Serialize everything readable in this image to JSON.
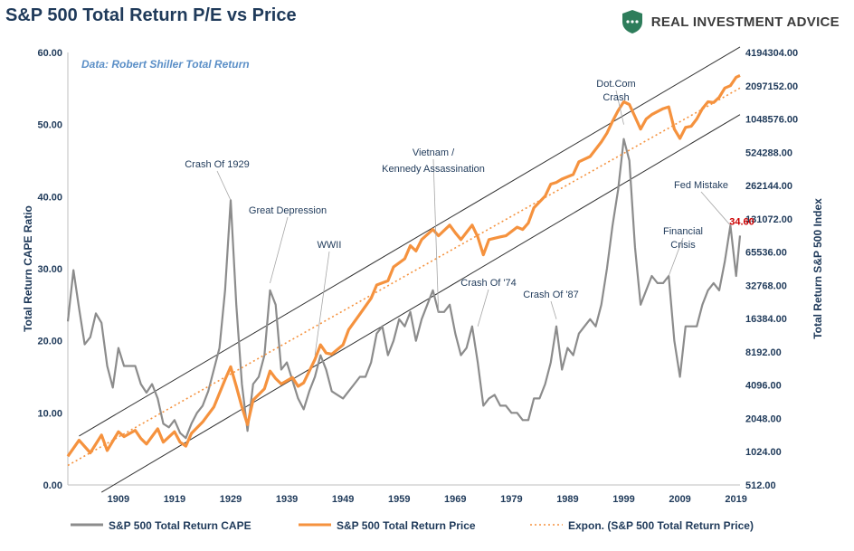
{
  "title": "S&P 500 Total Return P/E vs Price",
  "brand": {
    "name": "REAL INVESTMENT ADVICE",
    "icon": "shield-chart-icon",
    "color": "#2e7d5b"
  },
  "source_note": "Data: Robert Shiller Total Return",
  "chart_data": {
    "type": "line",
    "x_ticks": [
      "1909",
      "1919",
      "1929",
      "1939",
      "1949",
      "1959",
      "1969",
      "1979",
      "1989",
      "1999",
      "2009",
      "2019"
    ],
    "xlim": [
      1900,
      2019.7
    ],
    "y_left": {
      "label": "Total Return CAPE Ratio",
      "ticks": [
        "0.00",
        "10.00",
        "20.00",
        "30.00",
        "40.00",
        "50.00",
        "60.00"
      ],
      "range": [
        0,
        60
      ]
    },
    "y_right": {
      "label": "Total Return S&P 500 Index",
      "scale": "log2",
      "ticks": [
        "512.00",
        "1024.00",
        "2048.00",
        "4096.00",
        "8192.00",
        "16384.00",
        "32768.00",
        "65536.00",
        "131072.00",
        "262144.00",
        "524288.00",
        "1048576.00",
        "2097152.00",
        "4194304.00"
      ],
      "range": [
        512,
        4194304
      ]
    },
    "series": [
      {
        "name": "S&P 500 Total Return CAPE",
        "axis": "left",
        "color": "#8c8c8c",
        "points": [
          [
            1900,
            22.7
          ],
          [
            1901,
            29.8
          ],
          [
            1902,
            24.5
          ],
          [
            1903,
            19.5
          ],
          [
            1904,
            20.5
          ],
          [
            1905,
            23.8
          ],
          [
            1906,
            22.5
          ],
          [
            1907,
            16.5
          ],
          [
            1908,
            13.5
          ],
          [
            1909,
            19
          ],
          [
            1910,
            16.5
          ],
          [
            1911,
            16.5
          ],
          [
            1912,
            16.5
          ],
          [
            1913,
            14
          ],
          [
            1914,
            12.8
          ],
          [
            1915,
            14
          ],
          [
            1916,
            12
          ],
          [
            1917,
            8.5
          ],
          [
            1918,
            8
          ],
          [
            1919,
            9
          ],
          [
            1920,
            7.2
          ],
          [
            1921,
            6.5
          ],
          [
            1922,
            8.5
          ],
          [
            1923,
            10
          ],
          [
            1924,
            11
          ],
          [
            1925,
            13
          ],
          [
            1926,
            16
          ],
          [
            1927,
            19
          ],
          [
            1928,
            27
          ],
          [
            1929,
            39.5
          ],
          [
            1930,
            25
          ],
          [
            1931,
            14
          ],
          [
            1932,
            7.5
          ],
          [
            1933,
            14
          ],
          [
            1934,
            15
          ],
          [
            1935,
            18
          ],
          [
            1936,
            27
          ],
          [
            1937,
            25
          ],
          [
            1938,
            16
          ],
          [
            1939,
            17
          ],
          [
            1940,
            14.5
          ],
          [
            1941,
            12
          ],
          [
            1942,
            10.5
          ],
          [
            1943,
            13
          ],
          [
            1944,
            15
          ],
          [
            1945,
            18
          ],
          [
            1946,
            16
          ],
          [
            1947,
            13
          ],
          [
            1948,
            12.5
          ],
          [
            1949,
            12
          ],
          [
            1950,
            13
          ],
          [
            1951,
            14
          ],
          [
            1952,
            15
          ],
          [
            1953,
            15
          ],
          [
            1954,
            17
          ],
          [
            1955,
            21
          ],
          [
            1956,
            22
          ],
          [
            1957,
            18
          ],
          [
            1958,
            20
          ],
          [
            1959,
            23
          ],
          [
            1960,
            22
          ],
          [
            1961,
            24
          ],
          [
            1962,
            20
          ],
          [
            1963,
            23
          ],
          [
            1964,
            25
          ],
          [
            1965,
            27
          ],
          [
            1966,
            24
          ],
          [
            1967,
            24
          ],
          [
            1968,
            25
          ],
          [
            1969,
            21
          ],
          [
            1970,
            18
          ],
          [
            1971,
            19
          ],
          [
            1972,
            22
          ],
          [
            1973,
            17
          ],
          [
            1974,
            11
          ],
          [
            1975,
            12
          ],
          [
            1976,
            12.5
          ],
          [
            1977,
            11
          ],
          [
            1978,
            11
          ],
          [
            1979,
            10
          ],
          [
            1980,
            10
          ],
          [
            1981,
            9
          ],
          [
            1982,
            9
          ],
          [
            1983,
            12
          ],
          [
            1984,
            12
          ],
          [
            1985,
            14
          ],
          [
            1986,
            17
          ],
          [
            1987,
            22
          ],
          [
            1988,
            16
          ],
          [
            1989,
            19
          ],
          [
            1990,
            18
          ],
          [
            1991,
            21
          ],
          [
            1992,
            22
          ],
          [
            1993,
            23
          ],
          [
            1994,
            22
          ],
          [
            1995,
            25
          ],
          [
            1996,
            30
          ],
          [
            1997,
            36
          ],
          [
            1998,
            41
          ],
          [
            1999,
            48
          ],
          [
            2000,
            45
          ],
          [
            2001,
            33
          ],
          [
            2002,
            25
          ],
          [
            2003,
            27
          ],
          [
            2004,
            29
          ],
          [
            2005,
            28
          ],
          [
            2006,
            28
          ],
          [
            2007,
            29
          ],
          [
            2008,
            20
          ],
          [
            2009,
            15
          ],
          [
            2010,
            22
          ],
          [
            2011,
            22
          ],
          [
            2012,
            22
          ],
          [
            2013,
            25
          ],
          [
            2014,
            27
          ],
          [
            2015,
            28
          ],
          [
            2016,
            27
          ],
          [
            2017,
            31
          ],
          [
            2018,
            36
          ],
          [
            2019,
            29
          ],
          [
            2019.7,
            34.6
          ]
        ]
      },
      {
        "name": "S&P 500 Total Return Price",
        "axis": "right",
        "color": "#f5923e",
        "points": [
          [
            1900,
            930
          ],
          [
            1902,
            1300
          ],
          [
            1904,
            1000
          ],
          [
            1906,
            1450
          ],
          [
            1907,
            1050
          ],
          [
            1909,
            1550
          ],
          [
            1910,
            1400
          ],
          [
            1912,
            1600
          ],
          [
            1913,
            1350
          ],
          [
            1914,
            1200
          ],
          [
            1916,
            1650
          ],
          [
            1917,
            1250
          ],
          [
            1919,
            1550
          ],
          [
            1920,
            1250
          ],
          [
            1921,
            1150
          ],
          [
            1922,
            1500
          ],
          [
            1924,
            1900
          ],
          [
            1926,
            2600
          ],
          [
            1928,
            4600
          ],
          [
            1929,
            6000
          ],
          [
            1930,
            4000
          ],
          [
            1931,
            2600
          ],
          [
            1932,
            1800
          ],
          [
            1933,
            3000
          ],
          [
            1935,
            3800
          ],
          [
            1936,
            5500
          ],
          [
            1937,
            4700
          ],
          [
            1938,
            4200
          ],
          [
            1940,
            4800
          ],
          [
            1941,
            4000
          ],
          [
            1942,
            4300
          ],
          [
            1944,
            7000
          ],
          [
            1945,
            9500
          ],
          [
            1946,
            8000
          ],
          [
            1947,
            7800
          ],
          [
            1949,
            9500
          ],
          [
            1950,
            13000
          ],
          [
            1952,
            18000
          ],
          [
            1954,
            25000
          ],
          [
            1955,
            33000
          ],
          [
            1957,
            36000
          ],
          [
            1958,
            48000
          ],
          [
            1960,
            57000
          ],
          [
            1961,
            75000
          ],
          [
            1962,
            67000
          ],
          [
            1963,
            85000
          ],
          [
            1965,
            105000
          ],
          [
            1966,
            92000
          ],
          [
            1968,
            115000
          ],
          [
            1969,
            98000
          ],
          [
            1970,
            85000
          ],
          [
            1972,
            115000
          ],
          [
            1973,
            90000
          ],
          [
            1974,
            62000
          ],
          [
            1975,
            85000
          ],
          [
            1977,
            90000
          ],
          [
            1978,
            92000
          ],
          [
            1980,
            110000
          ],
          [
            1981,
            105000
          ],
          [
            1982,
            120000
          ],
          [
            1983,
            165000
          ],
          [
            1985,
            210000
          ],
          [
            1986,
            270000
          ],
          [
            1987,
            280000
          ],
          [
            1988,
            300000
          ],
          [
            1990,
            330000
          ],
          [
            1991,
            430000
          ],
          [
            1993,
            480000
          ],
          [
            1995,
            650000
          ],
          [
            1996,
            780000
          ],
          [
            1997,
            1000000
          ],
          [
            1998,
            1250000
          ],
          [
            1999,
            1500000
          ],
          [
            2000,
            1420000
          ],
          [
            2001,
            1100000
          ],
          [
            2002,
            850000
          ],
          [
            2003,
            1050000
          ],
          [
            2004,
            1150000
          ],
          [
            2006,
            1300000
          ],
          [
            2007,
            1350000
          ],
          [
            2008,
            850000
          ],
          [
            2009,
            700000
          ],
          [
            2010,
            880000
          ],
          [
            2011,
            900000
          ],
          [
            2012,
            1050000
          ],
          [
            2013,
            1300000
          ],
          [
            2014,
            1500000
          ],
          [
            2015,
            1480000
          ],
          [
            2016,
            1650000
          ],
          [
            2017,
            2000000
          ],
          [
            2018,
            2100000
          ],
          [
            2019,
            2500000
          ],
          [
            2019.7,
            2600000
          ]
        ]
      },
      {
        "name": "Expon. (S&P 500 Total Return Price)",
        "axis": "right",
        "color": "#f5923e",
        "style": "dotted",
        "points": [
          [
            1900,
            770
          ],
          [
            2019.7,
            2000000
          ]
        ]
      }
    ],
    "channel_lines": [
      {
        "axis": "right",
        "color": "#333333",
        "points": [
          [
            1902,
            1420
          ],
          [
            2019.7,
            4700000
          ]
        ]
      },
      {
        "axis": "right",
        "color": "#333333",
        "points": [
          [
            1906,
            440
          ],
          [
            2019.7,
            1150000
          ]
        ]
      }
    ],
    "annotations": [
      {
        "text": "Crash Of 1929",
        "point": [
          1929,
          39.5
        ]
      },
      {
        "text": "Great Depression",
        "point": [
          1936,
          28
        ]
      },
      {
        "text": "WWII",
        "point": [
          1944,
          18
        ]
      },
      {
        "text": "Vietnam /",
        "point": [
          1966,
          24
        ]
      },
      {
        "text": "Kennedy Assassination",
        "point": [
          1966,
          24
        ]
      },
      {
        "text": "Crash Of '74",
        "point": [
          1973,
          22
        ]
      },
      {
        "text": "Crash Of '87",
        "point": [
          1987,
          23
        ]
      },
      {
        "text": "Dot.Com",
        "point": [
          1999,
          50
        ]
      },
      {
        "text": "Crash",
        "point": [
          1999,
          50
        ]
      },
      {
        "text": "Financial",
        "point": [
          2007,
          29
        ]
      },
      {
        "text": "Crisis",
        "point": [
          2007,
          29
        ]
      },
      {
        "text": "Fed Mistake",
        "point": [
          2018,
          36
        ]
      }
    ],
    "end_value_label": {
      "text": "34.60",
      "color": "#cc0000"
    },
    "legend_position": "bottom",
    "grid": false
  }
}
